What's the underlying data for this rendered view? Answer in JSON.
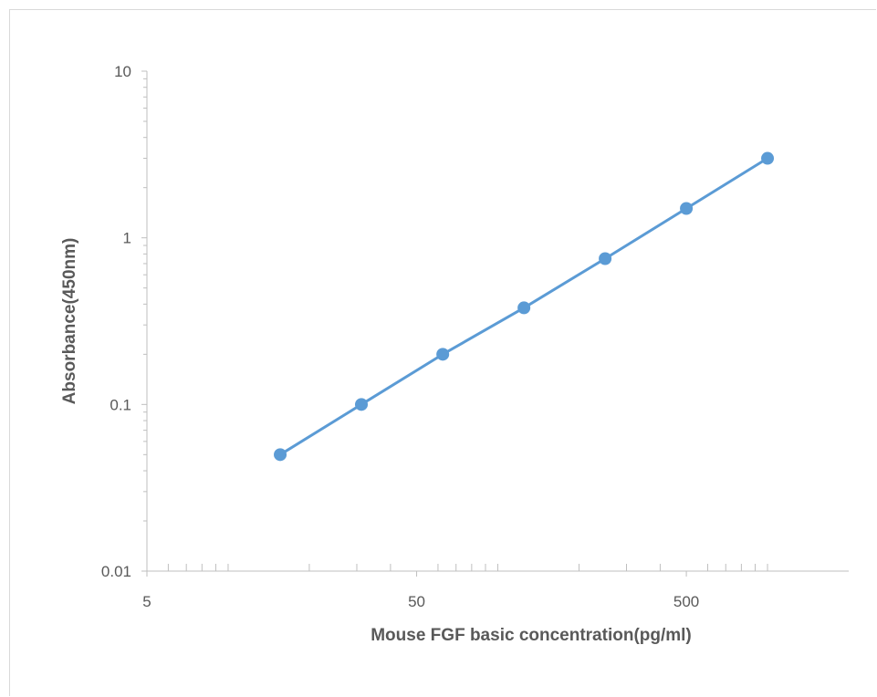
{
  "chart_data": {
    "type": "line",
    "title": "",
    "xlabel": "Mouse FGF basic concentration(pg/ml)",
    "ylabel": "Absorbance(450nm)",
    "x_scale": "log",
    "y_scale": "log",
    "xlim": [
      5,
      2000
    ],
    "ylim": [
      0.01,
      10
    ],
    "x_ticks": [
      {
        "value": 5,
        "label": "5"
      },
      {
        "value": 50,
        "label": "50"
      },
      {
        "value": 500,
        "label": "500"
      }
    ],
    "y_ticks": [
      {
        "value": 0.01,
        "label": "0.01"
      },
      {
        "value": 0.1,
        "label": "0.1"
      },
      {
        "value": 1,
        "label": "1"
      },
      {
        "value": 10,
        "label": "10"
      }
    ],
    "grid": false,
    "legend": "none",
    "series": [
      {
        "color": "#5b9bd5",
        "x": [
          15.6,
          31.2,
          62.5,
          125,
          250,
          500,
          1000
        ],
        "y": [
          0.05,
          0.1,
          0.2,
          0.38,
          0.75,
          1.5,
          3.0
        ]
      }
    ]
  }
}
